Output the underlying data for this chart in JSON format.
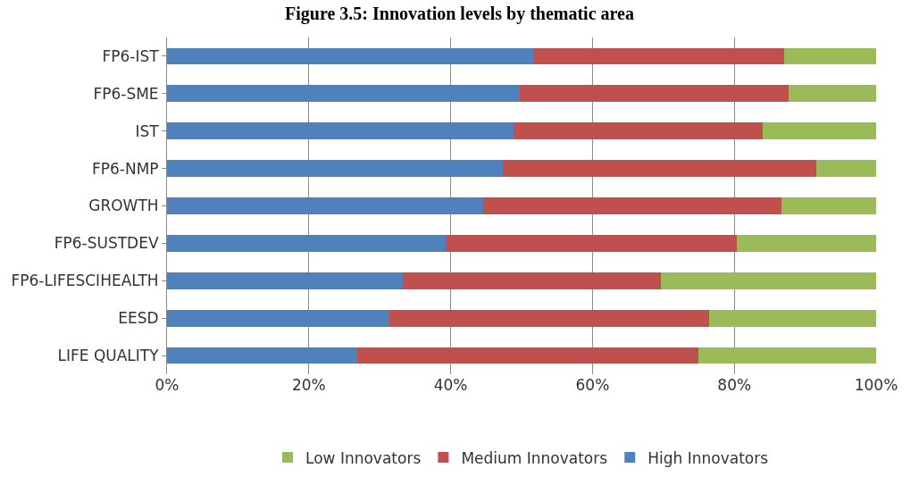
{
  "chart_data": {
    "type": "bar",
    "orientation": "horizontal",
    "stacked": true,
    "title": "Figure 3.5: Innovation levels by thematic area",
    "categories": [
      "FP6-IST",
      "FP6-SME",
      "IST",
      "FP6-NMP",
      "GROWTH",
      "FP6-SUSTDEV",
      "FP6-LIFESCIHEALTH",
      "EESD",
      "LIFE QUALITY"
    ],
    "series": [
      {
        "name": "High Innovators",
        "color": "#4f81bd",
        "values": [
          51.8,
          49.8,
          48.9,
          47.3,
          44.6,
          39.3,
          33.2,
          31.3,
          26.8
        ]
      },
      {
        "name": "Medium Innovators",
        "color": "#c0504d",
        "values": [
          35.2,
          37.9,
          35.1,
          44.2,
          42.0,
          41.0,
          36.4,
          45.2,
          48.1
        ]
      },
      {
        "name": "Low Innovators",
        "color": "#9bbb59",
        "values": [
          13.0,
          12.3,
          16.0,
          8.5,
          13.4,
          19.7,
          30.4,
          23.5,
          25.1
        ]
      }
    ],
    "xlim": [
      0,
      100
    ],
    "xticks": [
      {
        "value": 0,
        "label": "0%"
      },
      {
        "value": 20,
        "label": "20%"
      },
      {
        "value": 40,
        "label": "40%"
      },
      {
        "value": 60,
        "label": "60%"
      },
      {
        "value": 80,
        "label": "80%"
      },
      {
        "value": 100,
        "label": "100%"
      }
    ],
    "grid": "x",
    "legend": "bottom"
  }
}
